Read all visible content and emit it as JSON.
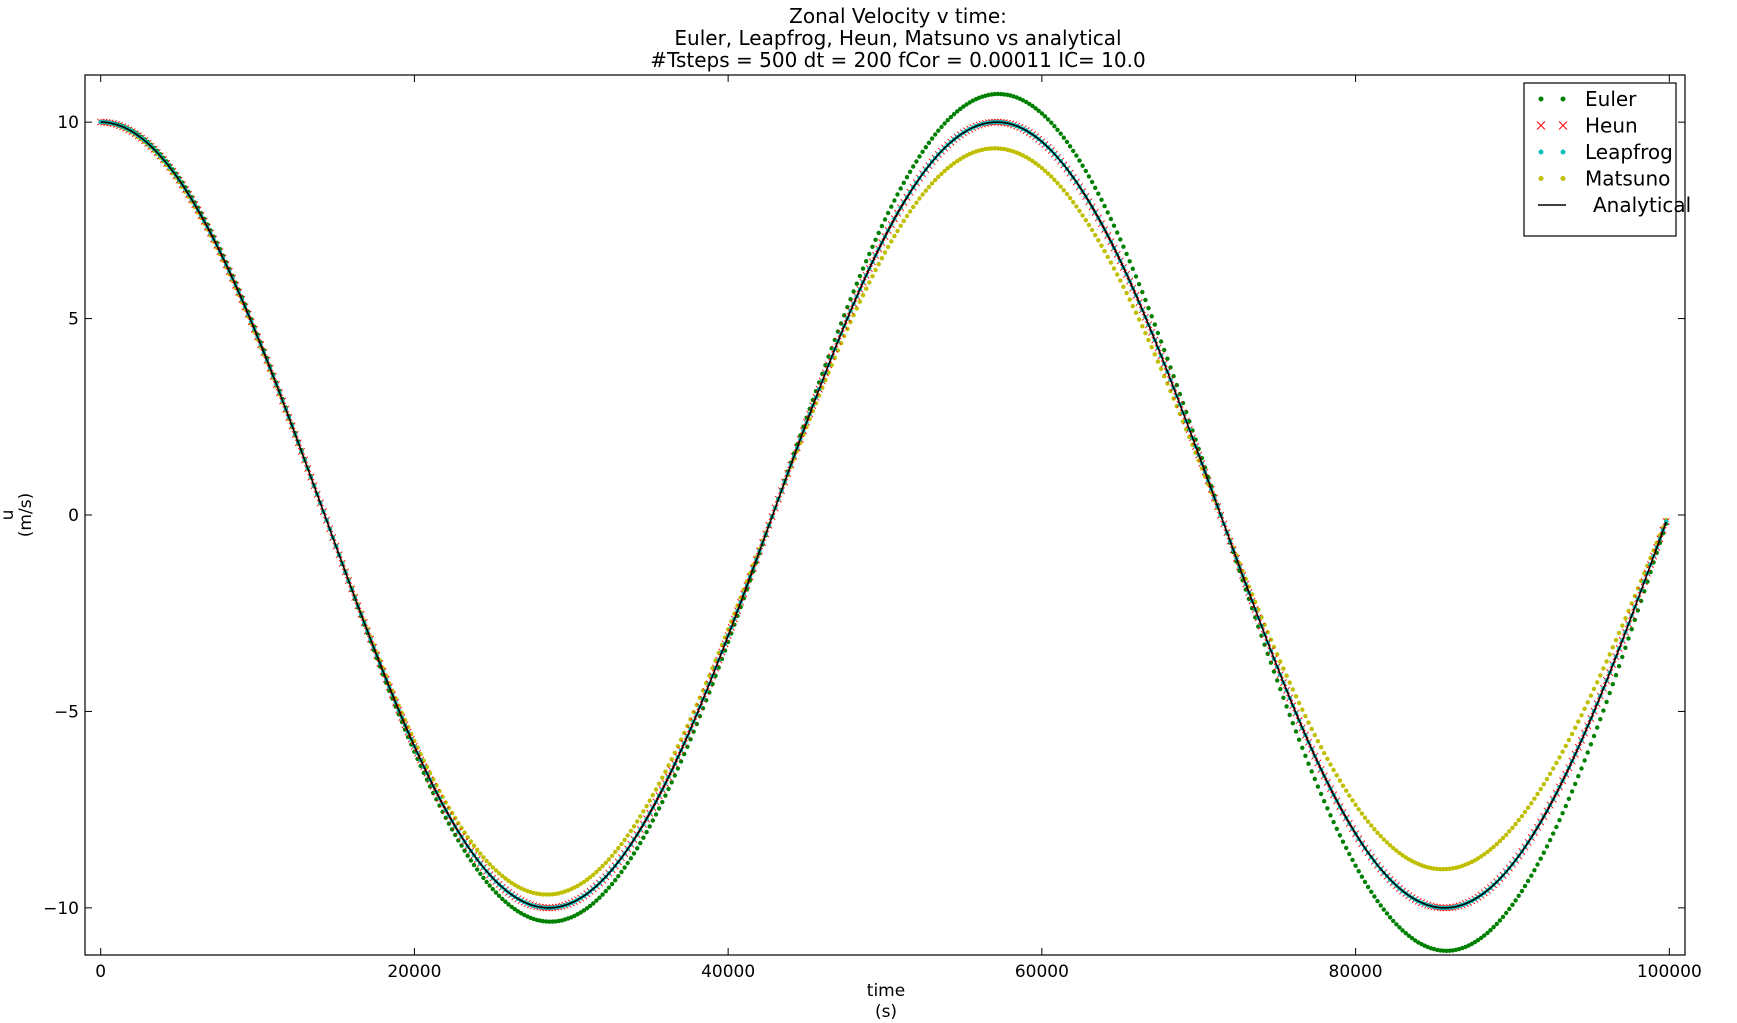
{
  "chart_data": {
    "type": "line",
    "title": [
      "Zonal Velocity v time:",
      "Euler, Leapfrog, Heun, Matsuno vs analytical",
      "#Tsteps = 500 dt = 200 fCor = 0.00011 IC= 10.0"
    ],
    "xlabel": [
      "time",
      "(s)"
    ],
    "ylabel": [
      "u",
      "(m/s)"
    ],
    "xlim": [
      -1000,
      101000
    ],
    "ylim": [
      -11.2,
      11.2
    ],
    "xticks": [
      0,
      20000,
      40000,
      60000,
      80000,
      100000
    ],
    "xtick_labels": [
      "0",
      "20000",
      "40000",
      "60000",
      "80000",
      "100000"
    ],
    "yticks": [
      10,
      5,
      0,
      -5,
      -10
    ],
    "ytick_labels": [
      "10",
      "5",
      "0",
      "−5",
      "−10"
    ],
    "grid": false,
    "legend_position": "top-right",
    "tsteps": 500,
    "dt": 200,
    "fcor": 0.00011,
    "ic": 10.0,
    "series": [
      {
        "name": "Euler",
        "method": "euler",
        "marker": "dot",
        "color": "#008000"
      },
      {
        "name": "Heun",
        "method": "heun",
        "marker": "x",
        "color": "#ff0000"
      },
      {
        "name": "Leapfrog",
        "method": "leapfrog",
        "marker": "dot",
        "color": "#00bfbf"
      },
      {
        "name": "Matsuno",
        "method": "matsuno",
        "marker": "dot",
        "color": "#bfbf00"
      },
      {
        "name": "Analytical",
        "method": "analytical",
        "marker": "line",
        "color": "#000000"
      }
    ]
  }
}
